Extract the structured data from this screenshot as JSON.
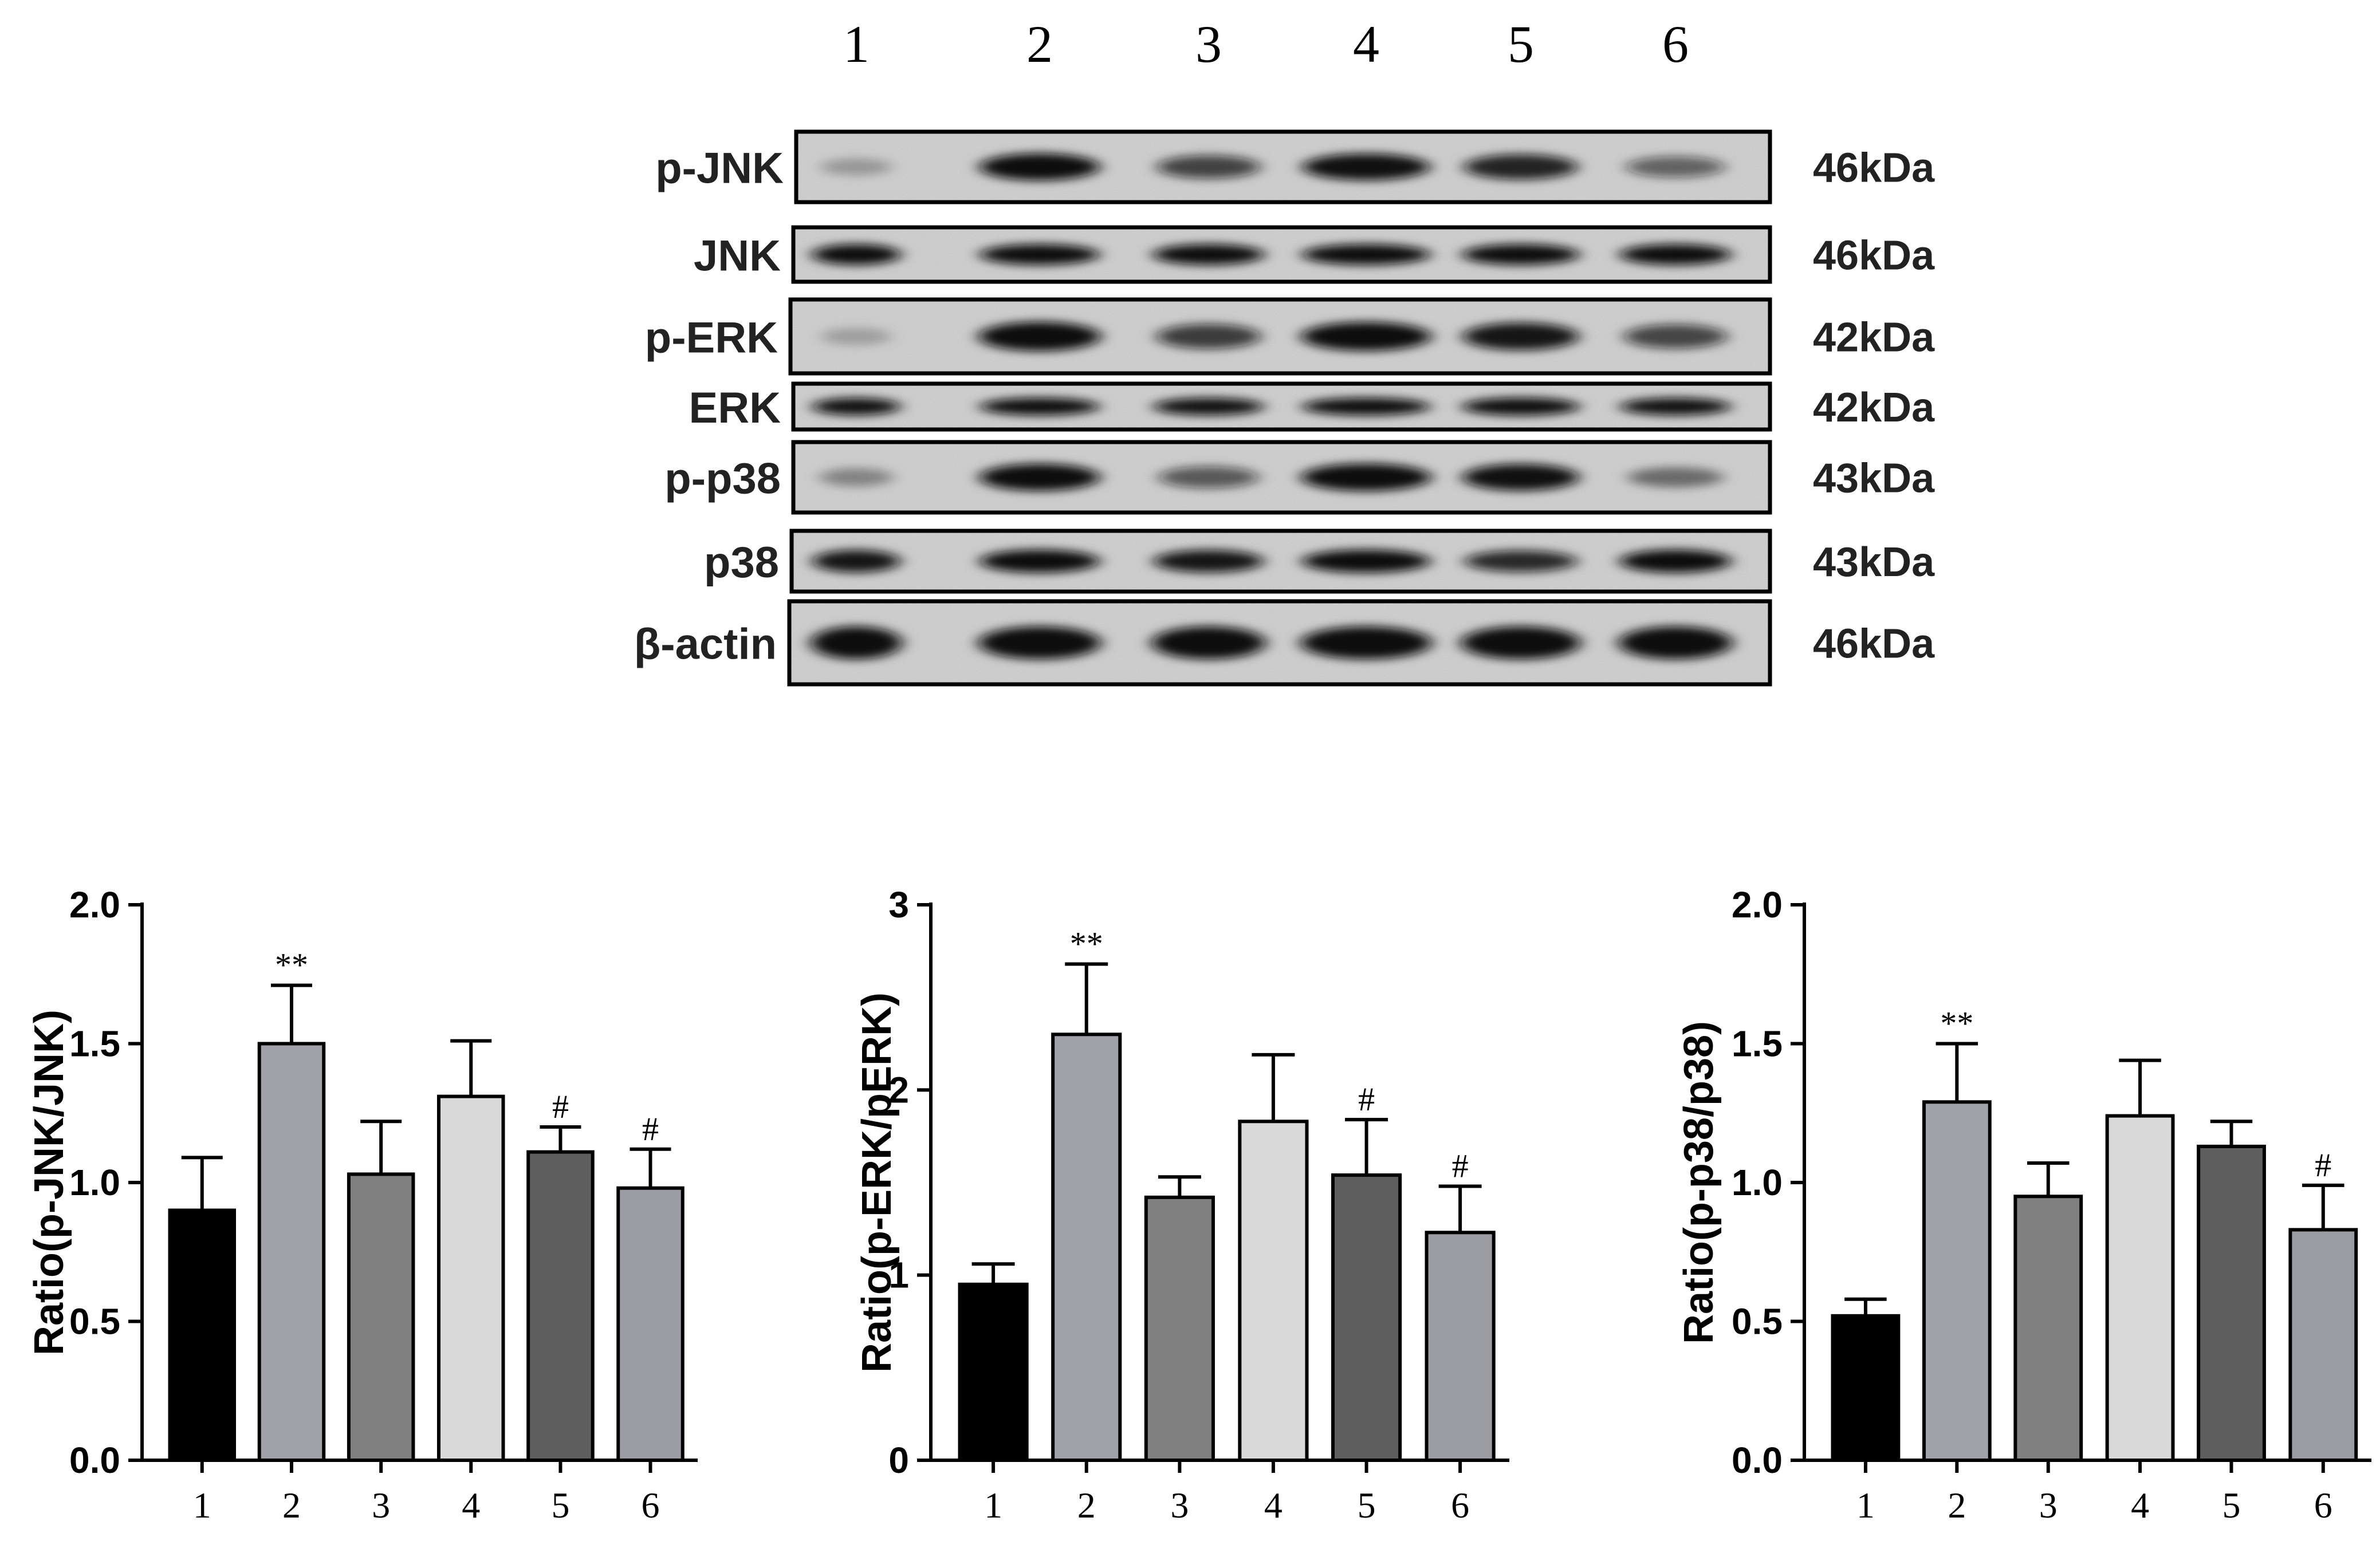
{
  "blot": {
    "lane_labels": [
      "1",
      "2",
      "3",
      "4",
      "5",
      "6"
    ],
    "background": "#d9d9d9",
    "band_color": "#0c0c0c",
    "rows": [
      {
        "label": "p-JNK",
        "mw": "46kDa",
        "intensity": [
          0.12,
          0.92,
          0.62,
          0.88,
          0.78,
          0.45
        ]
      },
      {
        "label": "JNK",
        "mw": "46kDa",
        "intensity": [
          0.9,
          0.9,
          0.9,
          0.9,
          0.9,
          0.9
        ]
      },
      {
        "label": "p-ERK",
        "mw": "42kDa",
        "intensity": [
          0.08,
          0.98,
          0.65,
          0.95,
          0.85,
          0.6
        ]
      },
      {
        "label": "ERK",
        "mw": "42kDa",
        "intensity": [
          0.88,
          0.9,
          0.88,
          0.9,
          0.93,
          0.88
        ]
      },
      {
        "label": "p-p38",
        "mw": "43kDa",
        "intensity": [
          0.22,
          0.92,
          0.5,
          0.95,
          0.88,
          0.35
        ]
      },
      {
        "label": "p38",
        "mw": "43kDa",
        "intensity": [
          0.85,
          0.9,
          0.85,
          0.9,
          0.75,
          0.9
        ]
      },
      {
        "label": "β-actin",
        "mw": "46kDa",
        "intensity": [
          0.98,
          0.98,
          0.98,
          0.98,
          0.98,
          0.98
        ]
      }
    ]
  },
  "chart_data": [
    {
      "type": "bar",
      "title": "",
      "xlabel": "",
      "ylabel": "Ratio(p-JNK/JNK)",
      "categories": [
        "1",
        "2",
        "3",
        "4",
        "5",
        "6"
      ],
      "values": [
        0.9,
        1.5,
        1.03,
        1.31,
        1.11,
        0.98
      ],
      "errors": [
        0.19,
        0.21,
        0.19,
        0.2,
        0.09,
        0.14
      ],
      "annotations": [
        "",
        "**",
        "",
        "",
        "#",
        "#"
      ],
      "ylim": [
        0,
        2
      ],
      "yticks": [
        0,
        0.5,
        1,
        1.5,
        2
      ],
      "ytick_labels": [
        "0.0",
        "0.5",
        "1.0",
        "1.5",
        "2.0"
      ],
      "grid": false,
      "colors": [
        "#000000",
        "#a1a1aa",
        "#808080",
        "#d9d9d9",
        "#5e5e5e",
        "#9c9ca3"
      ]
    },
    {
      "type": "bar",
      "title": "",
      "xlabel": "",
      "ylabel": "Ratio(p-ERK/pERK)",
      "categories": [
        "1",
        "2",
        "3",
        "4",
        "5",
        "6"
      ],
      "values": [
        0.95,
        2.3,
        1.42,
        1.83,
        1.54,
        1.23
      ],
      "errors": [
        0.11,
        0.38,
        0.11,
        0.36,
        0.3,
        0.25
      ],
      "annotations": [
        "",
        "**",
        "",
        "",
        "#",
        "#"
      ],
      "ylim": [
        0,
        3
      ],
      "yticks": [
        0,
        1,
        2,
        3
      ],
      "ytick_labels": [
        "0",
        "1",
        "2",
        "3"
      ],
      "grid": false,
      "colors": [
        "#000000",
        "#a1a1aa",
        "#808080",
        "#d9d9d9",
        "#5e5e5e",
        "#9c9ca3"
      ]
    },
    {
      "type": "bar",
      "title": "",
      "xlabel": "",
      "ylabel": "Ratio(p-p38/p38)",
      "categories": [
        "1",
        "2",
        "3",
        "4",
        "5",
        "6"
      ],
      "values": [
        0.52,
        1.29,
        0.95,
        1.24,
        1.13,
        0.83
      ],
      "errors": [
        0.06,
        0.21,
        0.12,
        0.2,
        0.09,
        0.16
      ],
      "annotations": [
        "",
        "**",
        "",
        "",
        "",
        "#"
      ],
      "ylim": [
        0,
        2
      ],
      "yticks": [
        0,
        0.5,
        1,
        1.5,
        2
      ],
      "ytick_labels": [
        "0.0",
        "0.5",
        "1.0",
        "1.5",
        "2.0"
      ],
      "grid": false,
      "colors": [
        "#000000",
        "#a1a1aa",
        "#808080",
        "#d9d9d9",
        "#5e5e5e",
        "#9c9ca3"
      ]
    }
  ]
}
